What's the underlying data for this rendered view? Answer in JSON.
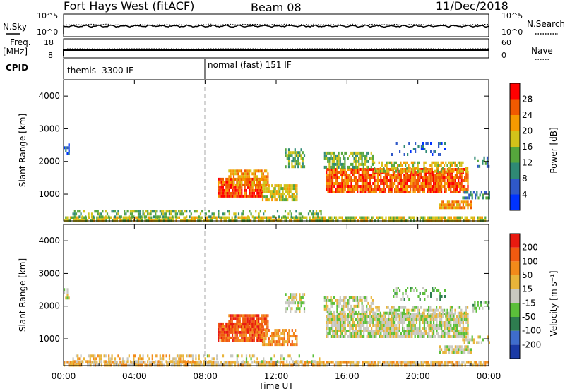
{
  "header": {
    "station": "Fort Hays West (fitACF)",
    "beam": "Beam 08",
    "date": "11/Dec/2018"
  },
  "aux_panels": {
    "nsky_label": "N.Sky",
    "nsky_ticks": [
      "10^5",
      "10^0"
    ],
    "nsearch_label": "N.Search",
    "nsearch_ticks": [
      "10^5",
      "10^0"
    ],
    "freq_label": "Freq.",
    "freq_unit": "[MHz]",
    "freq_ticks": [
      "18",
      "8"
    ],
    "nave_label": "Nave",
    "nave_ticks": [
      "60",
      "0"
    ],
    "cpid_label": "CPID",
    "cpid_segments": [
      {
        "text": "themis -3300 IF",
        "start_hour": 0
      },
      {
        "text": "normal (fast) 151 IF",
        "start_hour": 8
      }
    ]
  },
  "chart_data": [
    {
      "type": "heatmap",
      "parameter": "Power",
      "ylabel": "Slant Range [km]",
      "ylim": [
        180,
        4500
      ],
      "yticks": [
        1000,
        2000,
        3000,
        4000
      ],
      "colorbar_label": "Power [dB]",
      "colorbar_ticks": [
        "4",
        "8",
        "12",
        "16",
        "20",
        "24",
        "28"
      ],
      "colorbar_colors": [
        "#0033ff",
        "#2f58c8",
        "#2f8a74",
        "#56a63c",
        "#d2c21a",
        "#f59a00",
        "#f05a00",
        "#ff0000"
      ],
      "xlim_hours": [
        0,
        24
      ]
    },
    {
      "type": "heatmap",
      "parameter": "Velocity",
      "ylabel": "Slant Range [km]",
      "xlabel": "Time UT",
      "ylim": [
        180,
        4500
      ],
      "yticks": [
        1000,
        2000,
        3000,
        4000
      ],
      "colorbar_label": "Velocity [m s⁻¹]",
      "colorbar_ticks": [
        "200",
        "100",
        "50",
        "15",
        "-15",
        "-50",
        "-100",
        "-200"
      ],
      "colorbar_colors": [
        "#1a3aa6",
        "#3f6dcc",
        "#2e7d4f",
        "#5bbf3a",
        "#c8c8c0",
        "#e8b43a",
        "#f28a1a",
        "#f05a10",
        "#e81a10"
      ],
      "xticks": [
        "00:00",
        "04:00",
        "08:00",
        "12:00",
        "16:00",
        "20:00",
        "00:00"
      ],
      "xlim_hours": [
        0,
        24
      ]
    }
  ]
}
